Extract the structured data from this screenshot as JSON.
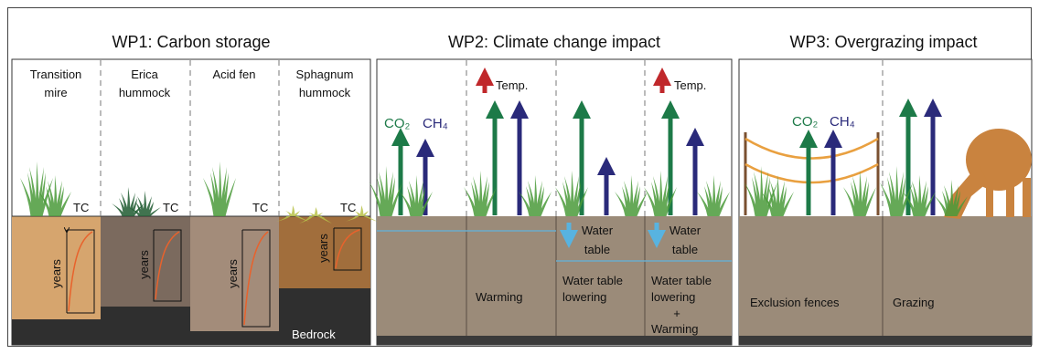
{
  "panels": [
    {
      "title": "WP1: Carbon storage",
      "columns": [
        {
          "label": [
            "Transition",
            "mire"
          ],
          "tc": "TC",
          "years": "years"
        },
        {
          "label": [
            "Erica",
            "hummock"
          ],
          "tc": "TC",
          "years": "years"
        },
        {
          "label": [
            "Acid fen"
          ],
          "tc": "TC",
          "years": "years"
        },
        {
          "label": [
            "Sphagnum",
            "hummock"
          ],
          "tc": "TC",
          "years": "years"
        }
      ],
      "bedrock": "Bedrock"
    },
    {
      "title": "WP2: Climate change impact",
      "columns": [
        {
          "co2": "CO₂",
          "ch4": "CH₄"
        },
        {
          "temp": "Temp.",
          "caption": [
            "Warming"
          ]
        },
        {
          "water": [
            "Water",
            "table"
          ],
          "caption": [
            "Water table",
            "lowering"
          ]
        },
        {
          "temp": "Temp.",
          "water": [
            "Water",
            "table"
          ],
          "caption": [
            "Water table",
            "lowering",
            "+",
            "Warming"
          ]
        }
      ]
    },
    {
      "title": "WP3: Overgrazing impact",
      "columns": [
        {
          "co2": "CO₂",
          "ch4": "CH₄",
          "caption": [
            "Exclusion fences"
          ]
        },
        {
          "caption": [
            "Grazing"
          ]
        }
      ]
    }
  ]
}
